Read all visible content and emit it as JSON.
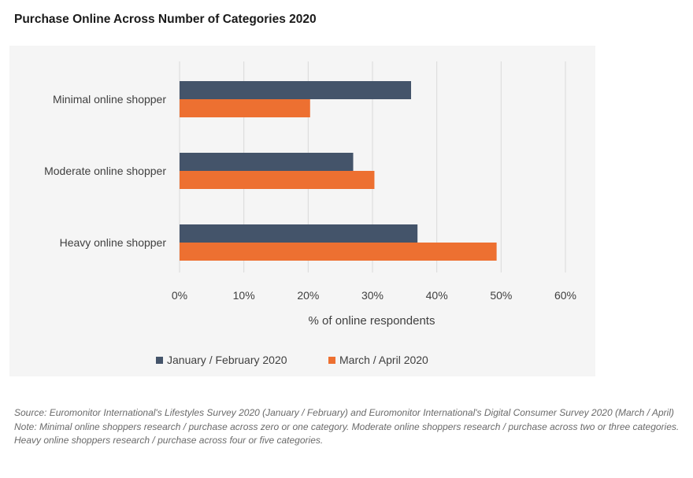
{
  "title": "Purchase Online Across Number of Categories 2020",
  "chart_data": {
    "type": "bar",
    "orientation": "horizontal",
    "categories": [
      "Minimal online shopper",
      "Moderate online shopper",
      "Heavy online shopper"
    ],
    "series": [
      {
        "name": "January / February 2020",
        "color": "#44546a",
        "values": [
          36,
          27,
          37
        ]
      },
      {
        "name": "March / April 2020",
        "color": "#ed7031",
        "values": [
          20.3,
          30.3,
          49.3
        ]
      }
    ],
    "xlabel": "% of online respondents",
    "xlim": [
      0,
      60
    ],
    "xticks": [
      "0%",
      "10%",
      "20%",
      "30%",
      "40%",
      "50%",
      "60%"
    ],
    "grid": true,
    "legend_position": "bottom"
  },
  "notes": {
    "source": "Source: Euromonitor International's Lifestyles Survey 2020 (January / February) and Euromonitor International's Digital Consumer Survey 2020 (March / April)",
    "note": "Note: Minimal online shoppers research / purchase across zero or one category. Moderate online shoppers research / purchase across two or three categories. Heavy online shoppers research / purchase across four or five categories."
  }
}
